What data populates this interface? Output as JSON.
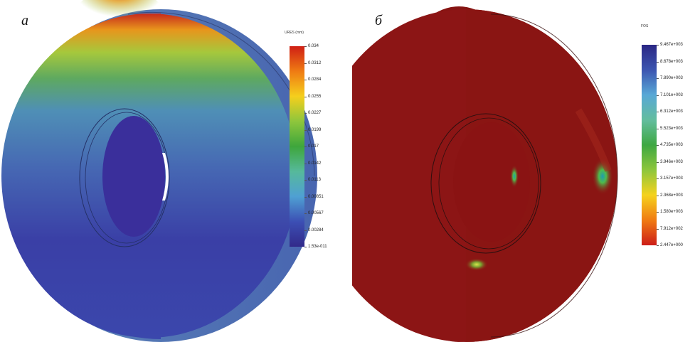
{
  "figure": {
    "panel_a": {
      "letter": "а",
      "legend": {
        "title": "URES (mm)",
        "colors": [
          "#cf1f14",
          "#ef7b13",
          "#f5cf1d",
          "#8ec63c",
          "#3ea63c",
          "#56b99b",
          "#4fa0d3",
          "#3c4fb4",
          "#322a8a"
        ],
        "ticks": [
          "0.034",
          "0.0312",
          "0.0284",
          "0.0255",
          "0.0227",
          "0.0199",
          "0.017",
          "0.0142",
          "0.0113",
          "0.00851",
          "0.00567",
          "0.00284",
          "1.53e-011"
        ]
      }
    },
    "panel_b": {
      "letter": "б",
      "legend": {
        "title": "FOS",
        "colors": [
          "#2a2784",
          "#3c55b0",
          "#58a8d6",
          "#63bd9e",
          "#3ea842",
          "#8ec63c",
          "#f5d21d",
          "#f07a12",
          "#cd1d18"
        ],
        "ticks": [
          "9.467e+003",
          "8.678e+003",
          "7.890e+003",
          "7.101e+003",
          "6.312e+003",
          "5.523e+003",
          "4.735e+003",
          "3.946e+003",
          "3.157e+003",
          "2.368e+003",
          "1.580e+003",
          "7.912e+002",
          "2.447e+000"
        ]
      }
    }
  }
}
